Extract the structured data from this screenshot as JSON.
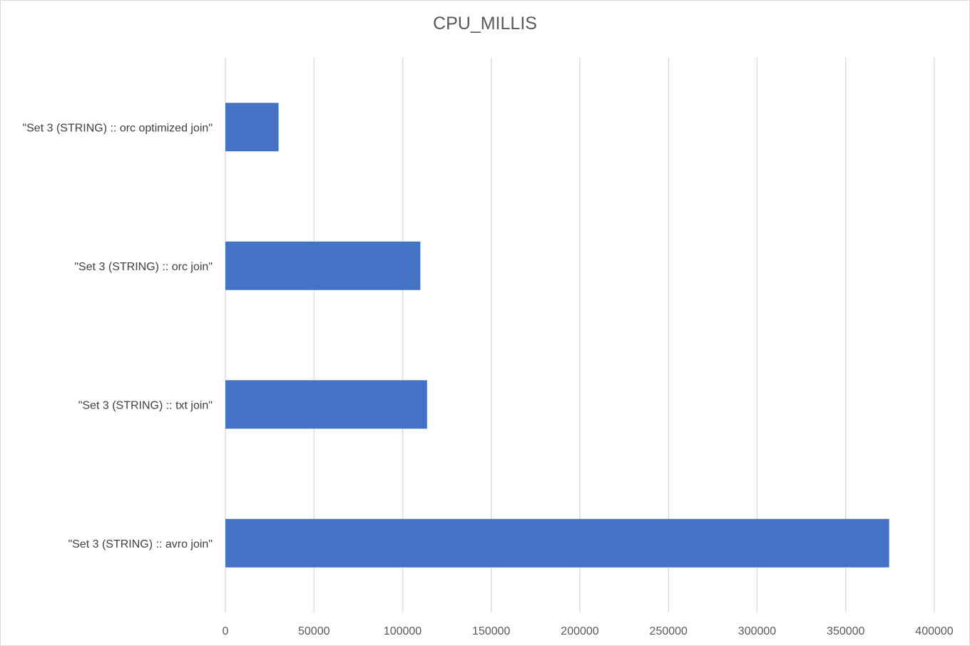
{
  "chart_data": {
    "type": "bar",
    "orientation": "horizontal",
    "title": "CPU_MILLIS",
    "categories": [
      "\"Set 3 (STRING) :: orc optimized join\"",
      "\"Set 3 (STRING) :: orc join\"",
      "\"Set 3 (STRING) :: txt join\"",
      "\"Set 3 (STRING) :: avro join\""
    ],
    "series": [
      {
        "values": [
          30000,
          110000,
          113800,
          374500
        ]
      }
    ],
    "xlim": [
      0,
      400000
    ],
    "xticks": [
      "0",
      "50000",
      "100000",
      "150000",
      "200000",
      "250000",
      "300000",
      "350000",
      "400000"
    ],
    "grid": true,
    "legend": "none",
    "bar_color": "#4472C4",
    "grid_color": "#d9d9d9"
  }
}
